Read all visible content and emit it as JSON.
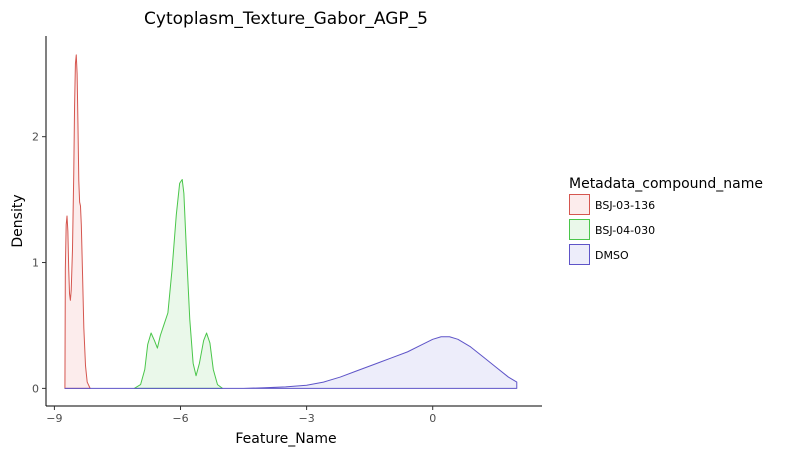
{
  "chart_data": {
    "type": "area",
    "title": "Cytoplasm_Texture_Gabor_AGP_5",
    "xlabel": "Feature_Name",
    "ylabel": "Density",
    "xlim": [
      -9.2,
      2.6
    ],
    "ylim": [
      -0.14,
      2.8
    ],
    "xticks": [
      -9,
      -6,
      -3,
      0
    ],
    "xtick_labels": [
      "−9",
      "−6",
      "−3",
      "0"
    ],
    "yticks": [
      0,
      1,
      2
    ],
    "ytick_labels": [
      "0",
      "1",
      "2"
    ],
    "grid": false,
    "legend": {
      "title": "Metadata_compound_name",
      "placement": "right"
    },
    "series": [
      {
        "name": "BSJ-03-136",
        "line_color": "#d5564f",
        "fill_color": "#fcecec",
        "points": [
          [
            -8.75,
            0.0
          ],
          [
            -8.74,
            0.95
          ],
          [
            -8.72,
            1.3
          ],
          [
            -8.7,
            1.37
          ],
          [
            -8.68,
            1.25
          ],
          [
            -8.66,
            0.95
          ],
          [
            -8.64,
            0.75
          ],
          [
            -8.62,
            0.7
          ],
          [
            -8.6,
            0.78
          ],
          [
            -8.57,
            1.1
          ],
          [
            -8.54,
            1.7
          ],
          [
            -8.52,
            2.25
          ],
          [
            -8.5,
            2.58
          ],
          [
            -8.48,
            2.65
          ],
          [
            -8.46,
            2.5
          ],
          [
            -8.44,
            2.1
          ],
          [
            -8.42,
            1.65
          ],
          [
            -8.4,
            1.48
          ],
          [
            -8.38,
            1.45
          ],
          [
            -8.36,
            1.3
          ],
          [
            -8.33,
            0.9
          ],
          [
            -8.3,
            0.48
          ],
          [
            -8.26,
            0.18
          ],
          [
            -8.22,
            0.05
          ],
          [
            -8.15,
            0.0
          ]
        ]
      },
      {
        "name": "BSJ-04-030",
        "line_color": "#4ac64a",
        "fill_color": "#eaf8ea",
        "points": [
          [
            -7.1,
            0.0
          ],
          [
            -6.95,
            0.03
          ],
          [
            -6.85,
            0.15
          ],
          [
            -6.78,
            0.35
          ],
          [
            -6.7,
            0.44
          ],
          [
            -6.62,
            0.38
          ],
          [
            -6.55,
            0.32
          ],
          [
            -6.48,
            0.42
          ],
          [
            -6.4,
            0.5
          ],
          [
            -6.3,
            0.6
          ],
          [
            -6.2,
            0.95
          ],
          [
            -6.1,
            1.38
          ],
          [
            -6.02,
            1.63
          ],
          [
            -5.96,
            1.66
          ],
          [
            -5.92,
            1.55
          ],
          [
            -5.86,
            1.1
          ],
          [
            -5.78,
            0.55
          ],
          [
            -5.7,
            0.2
          ],
          [
            -5.63,
            0.1
          ],
          [
            -5.55,
            0.2
          ],
          [
            -5.45,
            0.38
          ],
          [
            -5.38,
            0.44
          ],
          [
            -5.3,
            0.36
          ],
          [
            -5.22,
            0.15
          ],
          [
            -5.12,
            0.03
          ],
          [
            -5.0,
            0.0
          ]
        ]
      },
      {
        "name": "DMSO",
        "line_color": "#5e54c8",
        "fill_color": "#ededfa",
        "points": [
          [
            -8.75,
            0.0
          ],
          [
            -4.5,
            0.0
          ],
          [
            -4.0,
            0.005
          ],
          [
            -3.5,
            0.012
          ],
          [
            -3.0,
            0.025
          ],
          [
            -2.6,
            0.05
          ],
          [
            -2.2,
            0.09
          ],
          [
            -1.8,
            0.14
          ],
          [
            -1.4,
            0.19
          ],
          [
            -1.0,
            0.24
          ],
          [
            -0.6,
            0.29
          ],
          [
            -0.3,
            0.34
          ],
          [
            0.0,
            0.39
          ],
          [
            0.2,
            0.41
          ],
          [
            0.4,
            0.41
          ],
          [
            0.6,
            0.39
          ],
          [
            0.9,
            0.33
          ],
          [
            1.2,
            0.25
          ],
          [
            1.5,
            0.17
          ],
          [
            1.8,
            0.09
          ],
          [
            2.0,
            0.05
          ],
          [
            2.0,
            0.0
          ]
        ]
      }
    ]
  }
}
